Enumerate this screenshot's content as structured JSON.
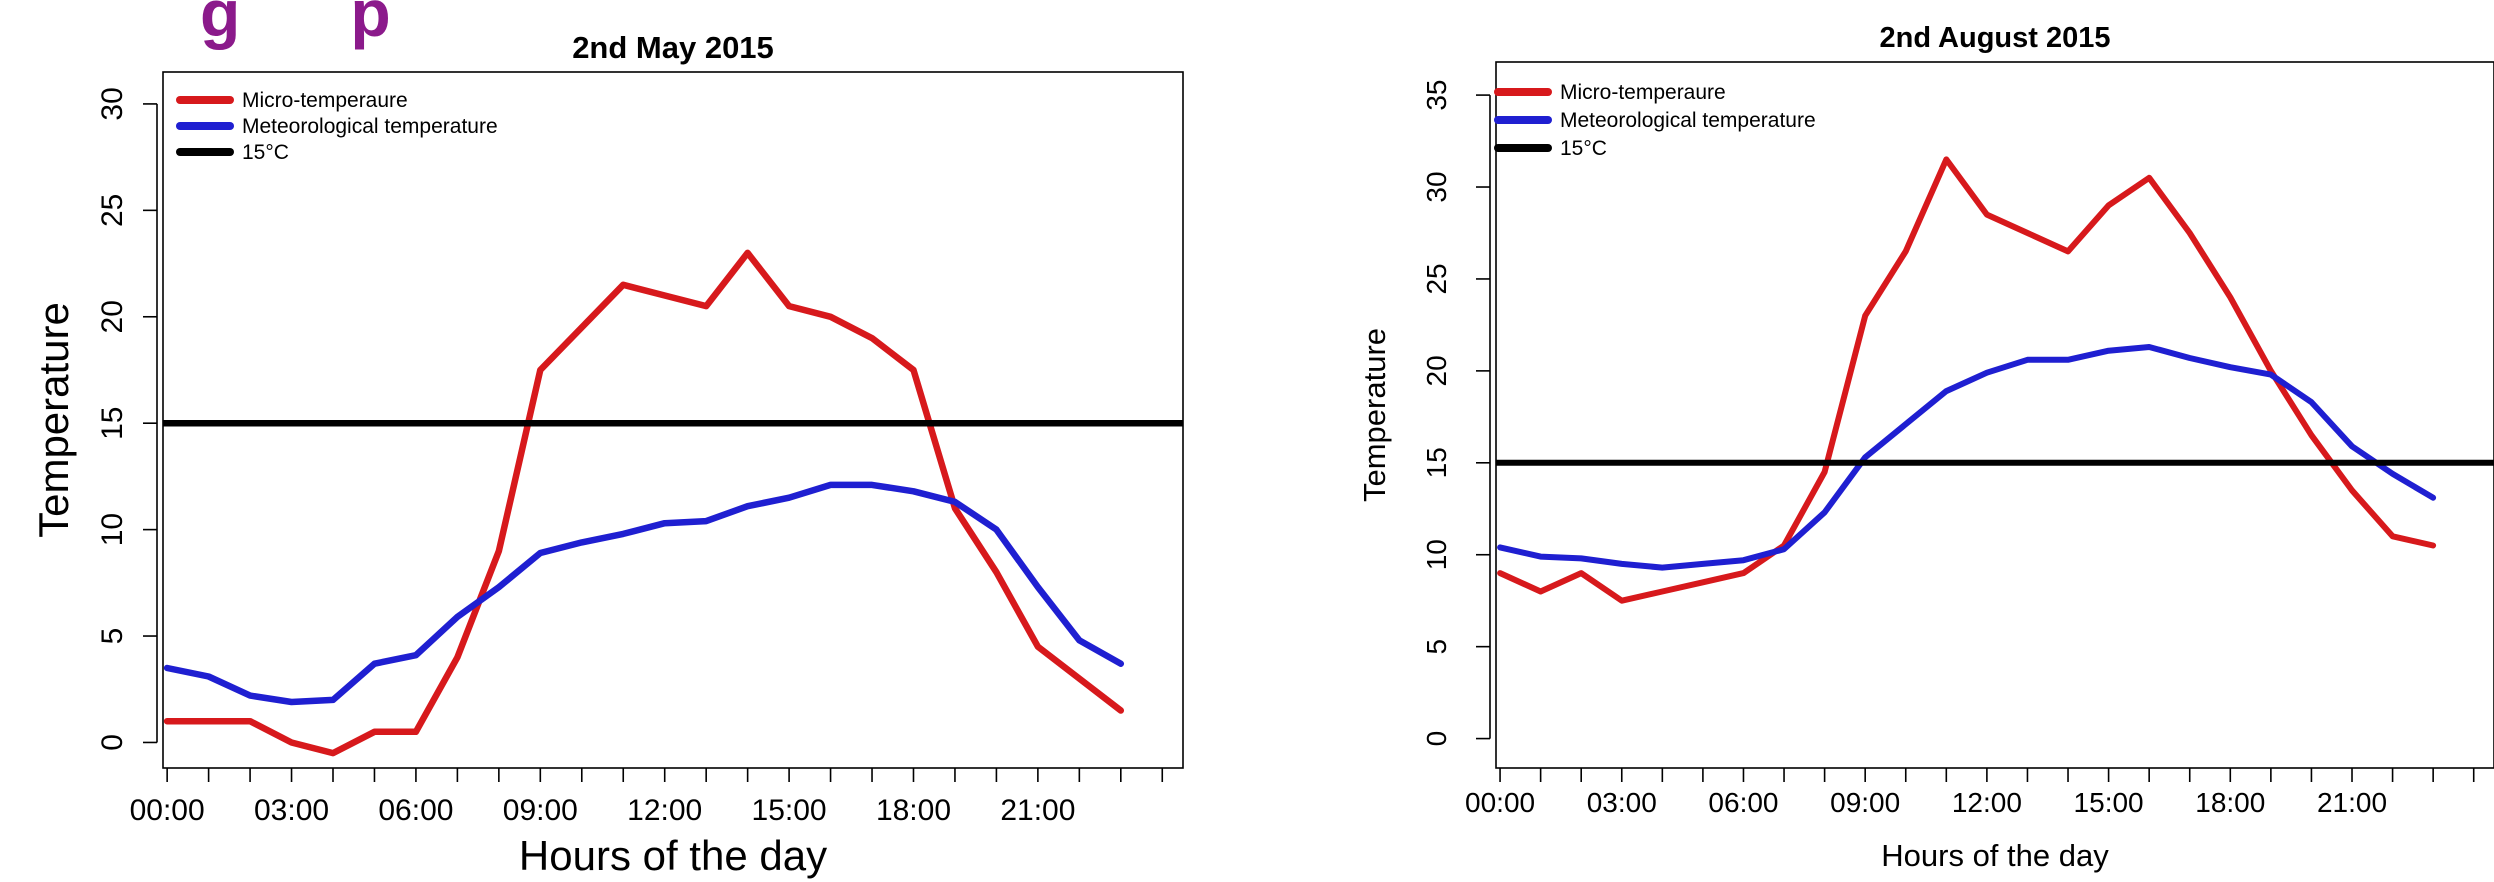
{
  "header_fragment": "g      p",
  "colors": {
    "micro": "#d7191c",
    "meteo": "#1f1fd1",
    "threshold": "#000000",
    "header": "#8b1a8b"
  },
  "chart_data": [
    {
      "type": "line",
      "title": "2nd May 2015",
      "xlabel": "Hours of the day",
      "ylabel": "Temperature",
      "x": [
        0,
        1,
        2,
        3,
        4,
        5,
        6,
        7,
        8,
        9,
        10,
        11,
        12,
        13,
        14,
        15,
        16,
        17,
        18,
        19,
        20,
        21,
        22,
        23
      ],
      "xticks": [
        0,
        1,
        2,
        3,
        4,
        5,
        6,
        7,
        8,
        9,
        10,
        11,
        12,
        13,
        14,
        15,
        16,
        17,
        18,
        19,
        20,
        21,
        22,
        23,
        24
      ],
      "xtick_labels": [
        {
          "x": 0,
          "label": "00:00"
        },
        {
          "x": 3,
          "label": "03:00"
        },
        {
          "x": 6,
          "label": "06:00"
        },
        {
          "x": 9,
          "label": "09:00"
        },
        {
          "x": 12,
          "label": "12:00"
        },
        {
          "x": 15,
          "label": "15:00"
        },
        {
          "x": 18,
          "label": "18:00"
        },
        {
          "x": 21,
          "label": "21:00"
        }
      ],
      "xlim": [
        -0.1,
        24.5
      ],
      "ylim": [
        -1.2,
        31.5
      ],
      "yticks": [
        0,
        5,
        10,
        15,
        20,
        25,
        30
      ],
      "ytick_labels": [
        "0",
        "5",
        "10",
        "15",
        "20",
        "25",
        "30"
      ],
      "legend_position": "top-left",
      "series": [
        {
          "name": "Micro-temperaure",
          "color_key": "micro",
          "values": [
            1,
            1,
            1,
            0,
            -0.5,
            0.5,
            0.5,
            4,
            9,
            17.5,
            19.5,
            21.5,
            21,
            20.5,
            23,
            20.5,
            20,
            19,
            17.5,
            11,
            8,
            4.5,
            3,
            1.5
          ]
        },
        {
          "name": "Meteorological temperature",
          "color_key": "meteo",
          "values": [
            3.5,
            3.1,
            2.2,
            1.9,
            2,
            3.7,
            4.1,
            5.9,
            7.3,
            8.9,
            9.4,
            9.8,
            10.3,
            10.4,
            11.1,
            11.5,
            12.1,
            12.1,
            11.8,
            11.3,
            10,
            7.3,
            4.8,
            3.7
          ]
        },
        {
          "name": "15°C",
          "color_key": "threshold",
          "hline": 15
        }
      ]
    },
    {
      "type": "line",
      "title": "2nd August 2015",
      "xlabel": "Hours of the day",
      "ylabel": "Temperature",
      "x": [
        0,
        1,
        2,
        3,
        4,
        5,
        6,
        7,
        8,
        9,
        10,
        11,
        12,
        13,
        14,
        15,
        16,
        17,
        18,
        19,
        20,
        21,
        22,
        23
      ],
      "xticks": [
        0,
        1,
        2,
        3,
        4,
        5,
        6,
        7,
        8,
        9,
        10,
        11,
        12,
        13,
        14,
        15,
        16,
        17,
        18,
        19,
        20,
        21,
        22,
        23,
        24
      ],
      "xtick_labels": [
        {
          "x": 0,
          "label": "00:00"
        },
        {
          "x": 3,
          "label": "03:00"
        },
        {
          "x": 6,
          "label": "06:00"
        },
        {
          "x": 9,
          "label": "09:00"
        },
        {
          "x": 12,
          "label": "12:00"
        },
        {
          "x": 15,
          "label": "15:00"
        },
        {
          "x": 18,
          "label": "18:00"
        },
        {
          "x": 21,
          "label": "21:00"
        }
      ],
      "xlim": [
        -0.1,
        24.5
      ],
      "ylim": [
        -1.6,
        36.8
      ],
      "yticks": [
        0,
        5,
        10,
        15,
        20,
        25,
        30,
        35
      ],
      "ytick_labels": [
        "0",
        "5",
        "10",
        "15",
        "20",
        "25",
        "30",
        "35"
      ],
      "legend_position": "top-left",
      "series": [
        {
          "name": "Micro-temperaure",
          "color_key": "micro",
          "values": [
            9,
            8,
            9,
            7.5,
            8,
            8.5,
            9,
            10.5,
            14.5,
            23,
            26.5,
            31.5,
            28.5,
            27.5,
            26.5,
            29,
            30.5,
            27.5,
            24,
            20,
            16.5,
            13.5,
            11,
            10.5
          ]
        },
        {
          "name": "Meteorological temperature",
          "color_key": "meteo",
          "values": [
            10.4,
            9.9,
            9.8,
            9.5,
            9.3,
            9.5,
            9.7,
            10.3,
            12.3,
            15.3,
            17.1,
            18.9,
            19.9,
            20.6,
            20.6,
            21.1,
            21.3,
            20.7,
            20.2,
            19.8,
            18.3,
            15.9,
            14.4,
            13.1
          ]
        },
        {
          "name": "15°C",
          "color_key": "threshold",
          "hline": 15
        }
      ]
    }
  ]
}
